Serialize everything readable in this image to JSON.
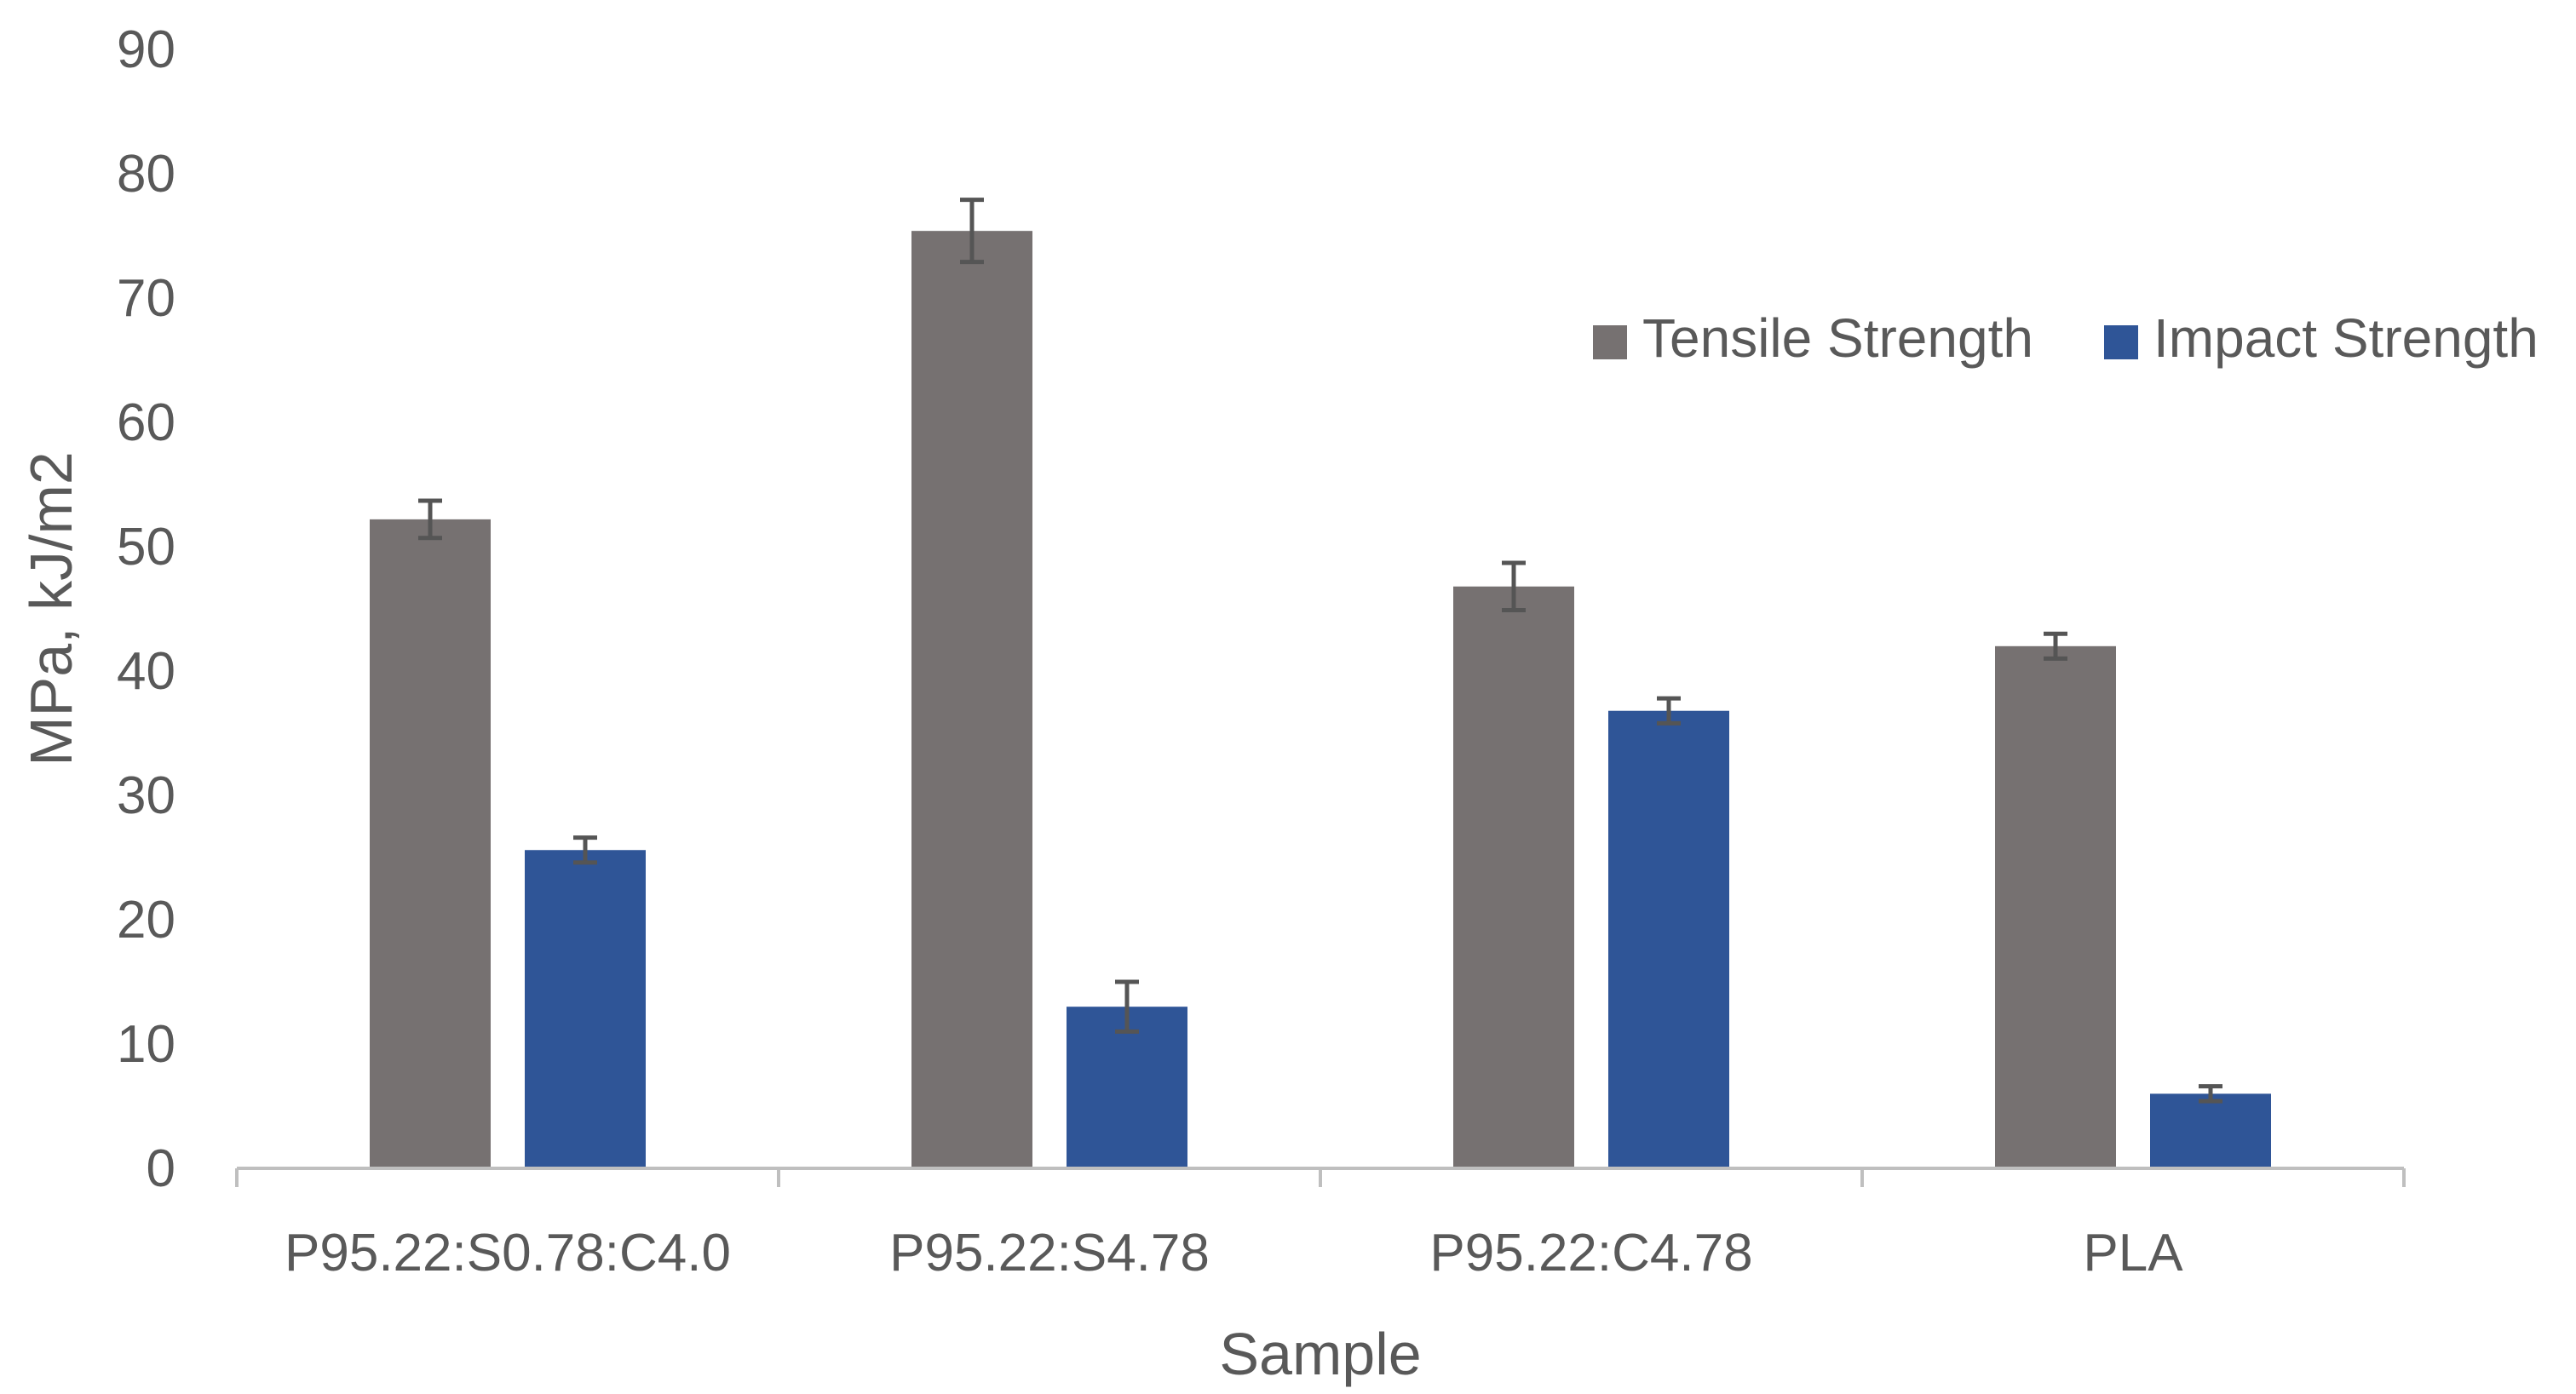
{
  "chart_data": {
    "type": "bar",
    "title": "",
    "xlabel": "Sample",
    "ylabel": "MPa, kJ/m2",
    "ylim": [
      0,
      90
    ],
    "yticks": [
      0,
      10,
      20,
      30,
      40,
      50,
      60,
      70,
      80,
      90
    ],
    "grid": false,
    "legend_position": "top-right",
    "categories": [
      "P95.22:S0.78:C4.0",
      "P95.22:S4.78",
      "P95.22:C4.78",
      "PLA"
    ],
    "series": [
      {
        "name": "Tensile Strength",
        "color": "#767171",
        "values": [
          52.2,
          75.4,
          46.8,
          42.0
        ],
        "errors": [
          1.5,
          2.5,
          1.9,
          1.0
        ]
      },
      {
        "name": "Impact Strength",
        "color": "#2F5597",
        "values": [
          25.6,
          13.0,
          36.8,
          6.0
        ],
        "errors": [
          1.0,
          2.0,
          1.0,
          0.6
        ]
      }
    ]
  }
}
